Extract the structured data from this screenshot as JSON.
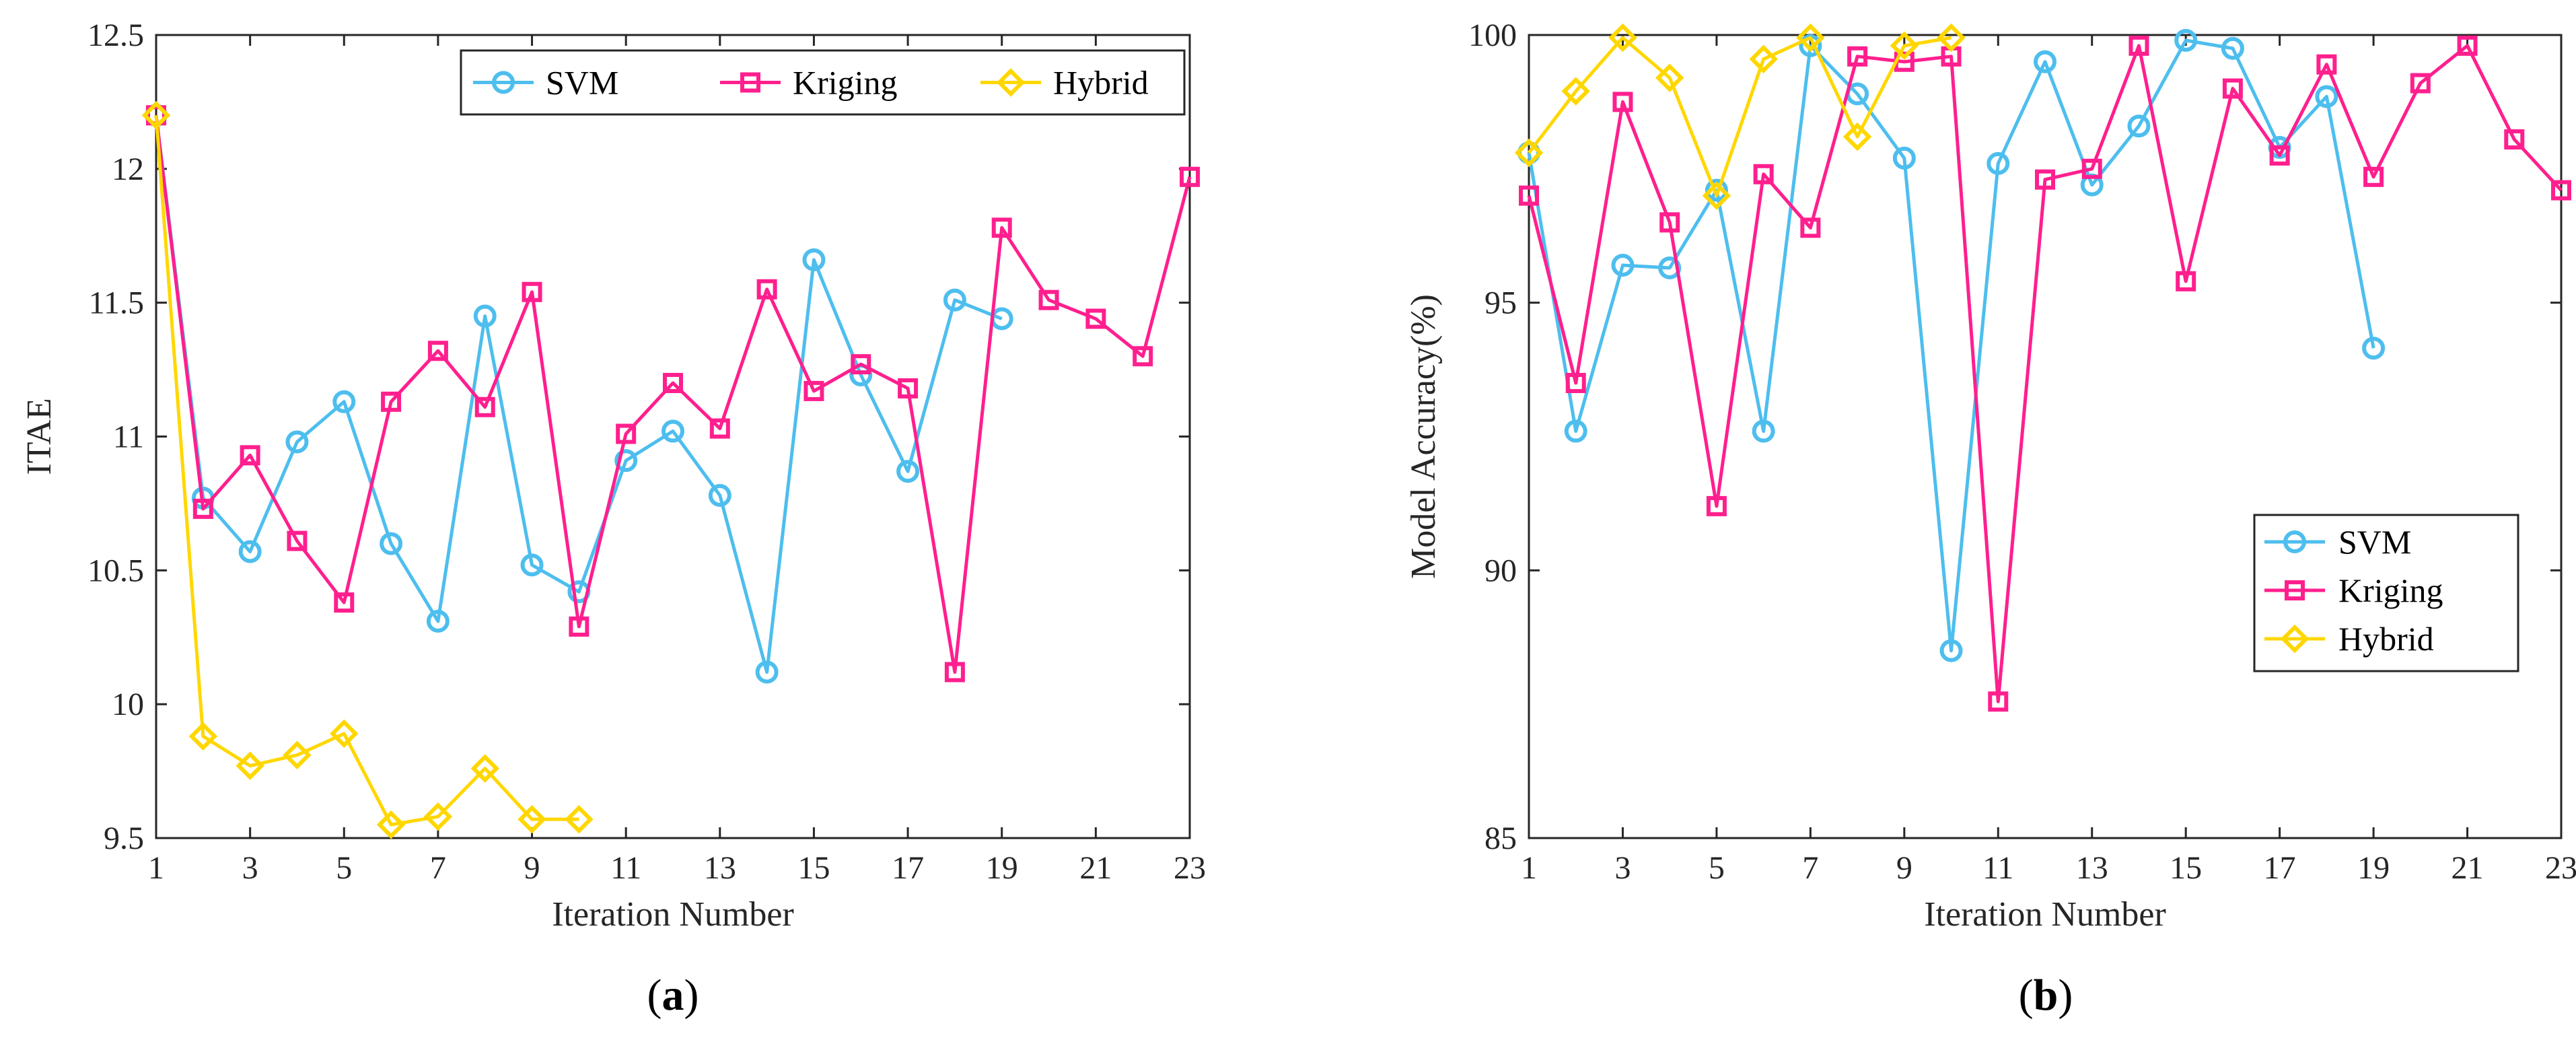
{
  "chart_data": [
    {
      "type": "line",
      "panel": "a",
      "caption": "a",
      "xlabel": "Iteration Number",
      "ylabel": "ITAE",
      "xlim": [
        1,
        23
      ],
      "ylim": [
        9.5,
        12.5
      ],
      "xticks": [
        "1",
        "3",
        "5",
        "7",
        "9",
        "11",
        "13",
        "15",
        "17",
        "19",
        "21",
        "23"
      ],
      "yticks": [
        "9.5",
        "10",
        "10.5",
        "11",
        "11.5",
        "12",
        "12.5"
      ],
      "legend_position": "top-right",
      "series": [
        {
          "name": "SVM",
          "color": "#4DBEEE",
          "marker": "circle",
          "x": [
            1,
            2,
            3,
            4,
            5,
            6,
            7,
            8,
            9,
            10,
            11,
            12,
            13,
            14,
            15,
            16,
            17,
            18,
            19
          ],
          "values": [
            12.2,
            10.77,
            10.57,
            10.98,
            11.13,
            10.6,
            10.31,
            11.45,
            10.52,
            10.42,
            10.91,
            11.02,
            10.78,
            10.12,
            11.66,
            11.23,
            10.87,
            11.51,
            11.44
          ]
        },
        {
          "name": "Kriging",
          "color": "#FF1F8E",
          "marker": "square",
          "x": [
            1,
            2,
            3,
            4,
            5,
            6,
            7,
            8,
            9,
            10,
            11,
            12,
            13,
            14,
            15,
            16,
            17,
            18,
            19,
            20,
            21,
            22,
            23
          ],
          "values": [
            12.2,
            10.73,
            10.93,
            10.61,
            10.38,
            11.13,
            11.32,
            11.11,
            11.54,
            10.29,
            11.01,
            11.2,
            11.03,
            11.55,
            11.17,
            11.27,
            11.18,
            10.12,
            11.78,
            11.51,
            11.44,
            11.3,
            11.97
          ]
        },
        {
          "name": "Hybrid",
          "color": "#FFD700",
          "marker": "diamond",
          "x": [
            1,
            2,
            3,
            4,
            5,
            6,
            7,
            8,
            9,
            10
          ],
          "values": [
            12.2,
            9.88,
            9.77,
            9.81,
            9.89,
            9.55,
            9.58,
            9.76,
            9.57,
            9.57
          ]
        }
      ]
    },
    {
      "type": "line",
      "panel": "b",
      "caption": "b",
      "xlabel": "Iteration Number",
      "ylabel": "Model Accuracy(%)",
      "xlim": [
        1,
        23
      ],
      "ylim": [
        85,
        100
      ],
      "xticks": [
        "1",
        "3",
        "5",
        "7",
        "9",
        "11",
        "13",
        "15",
        "17",
        "19",
        "21",
        "23"
      ],
      "yticks": [
        "85",
        "90",
        "95",
        "100"
      ],
      "legend_position": "bottom-right",
      "series": [
        {
          "name": "SVM",
          "color": "#4DBEEE",
          "marker": "circle",
          "x": [
            1,
            2,
            3,
            4,
            5,
            6,
            7,
            8,
            9,
            10,
            11,
            12,
            13,
            14,
            15,
            16,
            17,
            18,
            19
          ],
          "values": [
            97.8,
            92.6,
            95.7,
            95.65,
            97.1,
            92.6,
            99.8,
            98.9,
            97.7,
            88.5,
            97.6,
            99.5,
            97.2,
            98.3,
            99.9,
            99.75,
            97.9,
            98.85,
            94.15
          ]
        },
        {
          "name": "Kriging",
          "color": "#FF1F8E",
          "marker": "square",
          "x": [
            1,
            2,
            3,
            4,
            5,
            6,
            7,
            8,
            9,
            10,
            11,
            12,
            13,
            14,
            15,
            16,
            17,
            18,
            19,
            20,
            21,
            22,
            23
          ],
          "values": [
            97.0,
            93.5,
            98.75,
            96.5,
            91.2,
            97.4,
            96.4,
            99.6,
            99.5,
            99.6,
            87.55,
            97.3,
            97.5,
            99.8,
            95.4,
            99.0,
            97.75,
            99.45,
            97.35,
            99.1,
            99.8,
            98.05,
            97.1
          ]
        },
        {
          "name": "Hybrid",
          "color": "#FFD700",
          "marker": "diamond",
          "x": [
            1,
            2,
            3,
            4,
            5,
            6,
            7,
            8,
            9,
            10
          ],
          "values": [
            97.8,
            98.95,
            99.95,
            99.2,
            97.0,
            99.55,
            99.95,
            98.1,
            99.8,
            99.95
          ]
        }
      ]
    }
  ]
}
